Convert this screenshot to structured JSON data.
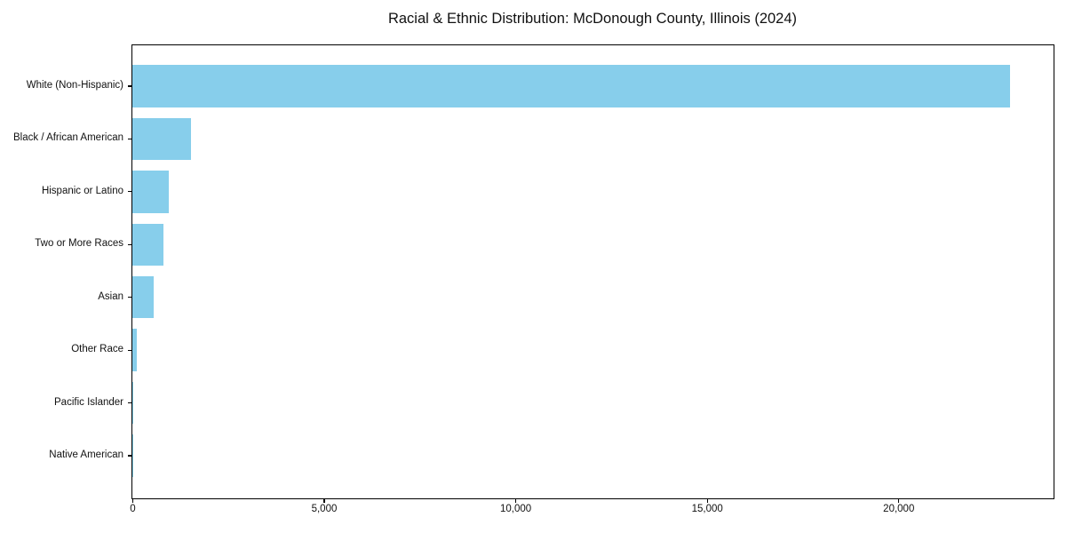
{
  "figure": {
    "background": "#ffffff"
  },
  "chart_data": {
    "type": "bar",
    "orientation": "horizontal",
    "title": "Racial & Ethnic Distribution: McDonough County, Illinois (2024)",
    "categories": [
      "White (Non-Hispanic)",
      "Black / African American",
      "Hispanic or Latino",
      "Two or More Races",
      "Asian",
      "Other Race",
      "Pacific Islander",
      "Native American"
    ],
    "values": [
      22900,
      1520,
      940,
      810,
      545,
      100,
      20,
      10
    ],
    "bar_color": "#87CEEB",
    "axis_color": "#000000",
    "text_color": "#111111",
    "xlim": [
      0,
      24050
    ],
    "xticks": [
      0,
      5000,
      10000,
      15000,
      20000
    ],
    "xtick_labels": [
      "0",
      "5,000",
      "10,000",
      "15,000",
      "20,000"
    ],
    "xlabel": "",
    "ylabel": "",
    "grid": false,
    "legend": null,
    "bar_height_frac": 0.8,
    "sorted": "descending"
  }
}
